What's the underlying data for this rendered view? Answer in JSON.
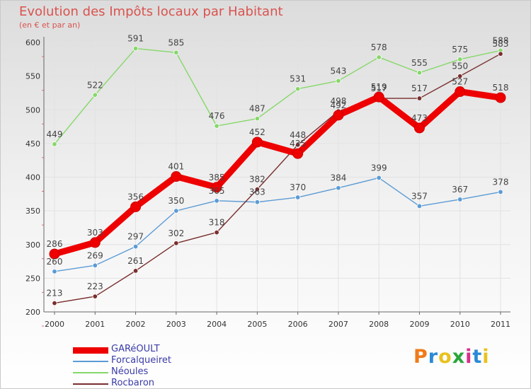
{
  "title": "Evolution des Impôts locaux par Habitant",
  "subtitle": "(en € et par an)",
  "logo": {
    "text": "Proxiti",
    "colors": [
      "#f07a1a",
      "#2a8ad6",
      "#e8c21e",
      "#2aa63a",
      "#d8308a",
      "#2a8ad6",
      "#e8c21e"
    ]
  },
  "chart_data": {
    "type": "line",
    "title": "Evolution des Impôts locaux par Habitant",
    "subtitle": "(en € et par an)",
    "xlabel": "",
    "ylabel": "",
    "categories": [
      "2000",
      "2001",
      "2002",
      "2003",
      "2004",
      "2005",
      "2006",
      "2007",
      "2008",
      "2009",
      "2010",
      "2011"
    ],
    "ylim": [
      200,
      600
    ],
    "yticks": [
      200,
      250,
      300,
      350,
      400,
      450,
      500,
      550,
      600
    ],
    "grid": true,
    "legend_position": "bottom-left",
    "series": [
      {
        "name": "GARéOULT",
        "color": "#ee0000",
        "emphasis": true,
        "values": [
          286,
          303,
          356,
          401,
          385,
          452,
          435,
          492,
          519,
          473,
          527,
          518
        ]
      },
      {
        "name": "Forcalqueiret",
        "color": "#5b9bd5",
        "emphasis": false,
        "values": [
          260,
          269,
          297,
          350,
          365,
          363,
          370,
          384,
          399,
          357,
          367,
          378
        ]
      },
      {
        "name": "Néoules",
        "color": "#86d86a",
        "emphasis": false,
        "values": [
          449,
          522,
          591,
          585,
          476,
          487,
          531,
          543,
          578,
          555,
          575,
          588
        ]
      },
      {
        "name": "Rocbaron",
        "color": "#7a2f2f",
        "emphasis": false,
        "values": [
          213,
          223,
          261,
          302,
          318,
          382,
          448,
          498,
          517,
          517,
          550,
          583
        ]
      }
    ]
  }
}
